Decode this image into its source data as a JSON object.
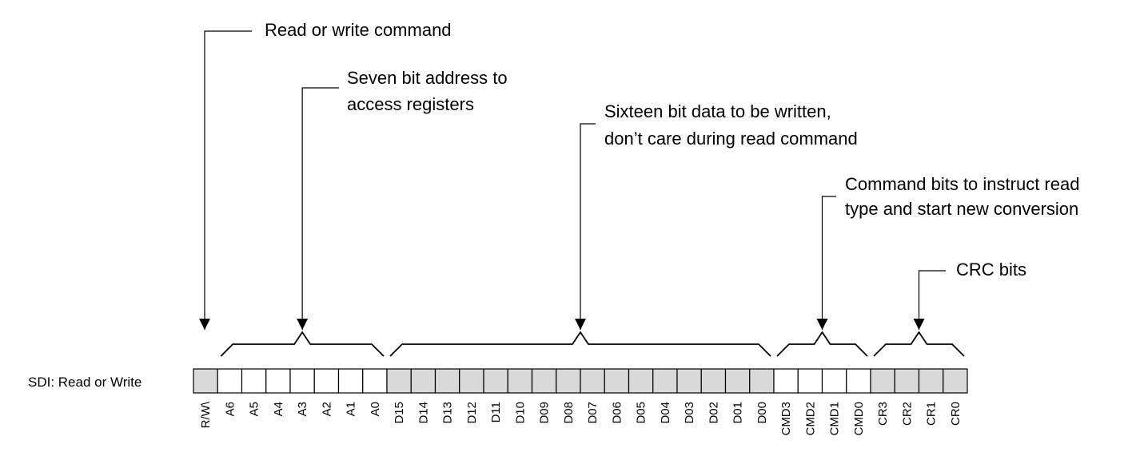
{
  "row_label": "SDI: Read or Write",
  "annotations": {
    "rw": [
      "Read or write command"
    ],
    "address": [
      "Seven bit address to",
      "access registers"
    ],
    "data": [
      "Sixteen bit data to be written,",
      "don’t care during read command"
    ],
    "command": [
      "Command bits to instruct read",
      "type and start new conversion"
    ],
    "crc": [
      "CRC bits"
    ]
  },
  "bits": [
    {
      "label": "R/W\\",
      "group": "rw",
      "shade": "#d9d9d9"
    },
    {
      "label": "A6",
      "group": "address",
      "shade": "#ffffff"
    },
    {
      "label": "A5",
      "group": "address",
      "shade": "#ffffff"
    },
    {
      "label": "A4",
      "group": "address",
      "shade": "#ffffff"
    },
    {
      "label": "A3",
      "group": "address",
      "shade": "#ffffff"
    },
    {
      "label": "A2",
      "group": "address",
      "shade": "#ffffff"
    },
    {
      "label": "A1",
      "group": "address",
      "shade": "#ffffff"
    },
    {
      "label": "A0",
      "group": "address",
      "shade": "#ffffff"
    },
    {
      "label": "D15",
      "group": "data",
      "shade": "#d9d9d9"
    },
    {
      "label": "D14",
      "group": "data",
      "shade": "#d9d9d9"
    },
    {
      "label": "D13",
      "group": "data",
      "shade": "#d9d9d9"
    },
    {
      "label": "D12",
      "group": "data",
      "shade": "#d9d9d9"
    },
    {
      "label": "D11",
      "group": "data",
      "shade": "#d9d9d9"
    },
    {
      "label": "D10",
      "group": "data",
      "shade": "#d9d9d9"
    },
    {
      "label": "D09",
      "group": "data",
      "shade": "#d9d9d9"
    },
    {
      "label": "D08",
      "group": "data",
      "shade": "#d9d9d9"
    },
    {
      "label": "D07",
      "group": "data",
      "shade": "#d9d9d9"
    },
    {
      "label": "D06",
      "group": "data",
      "shade": "#d9d9d9"
    },
    {
      "label": "D05",
      "group": "data",
      "shade": "#d9d9d9"
    },
    {
      "label": "D04",
      "group": "data",
      "shade": "#d9d9d9"
    },
    {
      "label": "D03",
      "group": "data",
      "shade": "#d9d9d9"
    },
    {
      "label": "D02",
      "group": "data",
      "shade": "#d9d9d9"
    },
    {
      "label": "D01",
      "group": "data",
      "shade": "#d9d9d9"
    },
    {
      "label": "D00",
      "group": "data",
      "shade": "#d9d9d9"
    },
    {
      "label": "CMD3",
      "group": "command",
      "shade": "#ffffff"
    },
    {
      "label": "CMD2",
      "group": "command",
      "shade": "#ffffff"
    },
    {
      "label": "CMD1",
      "group": "command",
      "shade": "#ffffff"
    },
    {
      "label": "CMD0",
      "group": "command",
      "shade": "#ffffff"
    },
    {
      "label": "CR3",
      "group": "crc",
      "shade": "#d9d9d9"
    },
    {
      "label": "CR2",
      "group": "crc",
      "shade": "#d9d9d9"
    },
    {
      "label": "CR1",
      "group": "crc",
      "shade": "#d9d9d9"
    },
    {
      "label": "CR0",
      "group": "crc",
      "shade": "#d9d9d9"
    }
  ]
}
